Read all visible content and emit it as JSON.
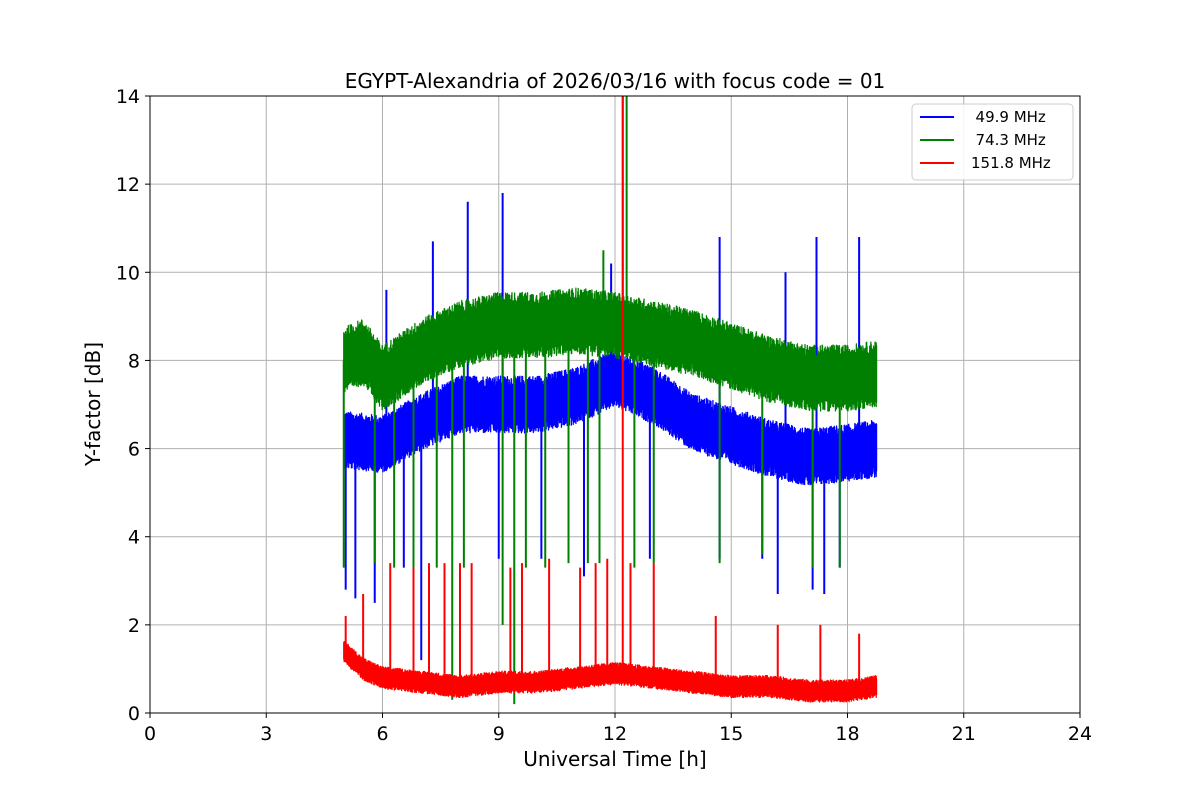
{
  "chart_data": {
    "type": "line",
    "title": "EGYPT-Alexandria of 2026/03/16 with focus code = 01",
    "xlabel": "Universal Time [h]",
    "ylabel": "Y-factor [dB]",
    "xlim": [
      0,
      24
    ],
    "ylim": [
      0,
      14
    ],
    "xticks": [
      0,
      3,
      6,
      9,
      12,
      15,
      18,
      21,
      24
    ],
    "yticks": [
      0,
      2,
      4,
      6,
      8,
      10,
      12,
      14
    ],
    "grid": true,
    "legend_position": "top-right",
    "time_range": [
      5.0,
      18.75
    ],
    "series": [
      {
        "name": "49.9 MHz",
        "label": "  49.9 MHz",
        "color": "#0000ff",
        "baseline": [
          [
            5.0,
            6.2
          ],
          [
            6.0,
            6.1
          ],
          [
            7.0,
            6.6
          ],
          [
            8.0,
            7.0
          ],
          [
            9.0,
            7.0
          ],
          [
            10.0,
            7.0
          ],
          [
            11.0,
            7.2
          ],
          [
            12.0,
            7.6
          ],
          [
            13.0,
            7.2
          ],
          [
            14.0,
            6.6
          ],
          [
            15.0,
            6.3
          ],
          [
            16.0,
            6.0
          ],
          [
            17.0,
            5.8
          ],
          [
            18.0,
            5.9
          ],
          [
            18.75,
            6.0
          ]
        ],
        "noise_span": 1.3,
        "spikes": [
          [
            7.3,
            10.7
          ],
          [
            8.2,
            11.6
          ],
          [
            9.1,
            11.8
          ],
          [
            14.7,
            10.8
          ],
          [
            16.4,
            10.0
          ],
          [
            17.2,
            10.8
          ],
          [
            18.3,
            10.8
          ],
          [
            6.1,
            9.6
          ],
          [
            11.9,
            10.2
          ]
        ],
        "dips": [
          [
            5.05,
            2.8
          ],
          [
            5.3,
            2.6
          ],
          [
            5.8,
            2.5
          ],
          [
            6.55,
            3.3
          ],
          [
            7.0,
            1.2
          ],
          [
            9.0,
            3.5
          ],
          [
            10.1,
            3.5
          ],
          [
            11.2,
            3.1
          ],
          [
            12.9,
            3.5
          ],
          [
            14.7,
            3.5
          ],
          [
            15.8,
            3.5
          ],
          [
            16.2,
            2.7
          ],
          [
            17.1,
            2.8
          ],
          [
            17.4,
            2.7
          ],
          [
            17.8,
            3.3
          ]
        ]
      },
      {
        "name": "74.3 MHz",
        "label": "  74.3 MHz",
        "color": "#008000",
        "baseline": [
          [
            5.0,
            8.0
          ],
          [
            5.5,
            8.2
          ],
          [
            6.0,
            7.6
          ],
          [
            7.0,
            8.2
          ],
          [
            8.0,
            8.6
          ],
          [
            9.0,
            8.8
          ],
          [
            10.0,
            8.8
          ],
          [
            11.0,
            8.9
          ],
          [
            12.0,
            8.8
          ],
          [
            13.0,
            8.6
          ],
          [
            14.0,
            8.4
          ],
          [
            15.0,
            8.1
          ],
          [
            16.0,
            7.8
          ],
          [
            17.0,
            7.6
          ],
          [
            18.0,
            7.6
          ],
          [
            18.75,
            7.7
          ]
        ],
        "noise_span": 1.5,
        "spikes": [
          [
            12.2,
            14.0
          ],
          [
            12.3,
            14.0
          ],
          [
            11.7,
            10.5
          ]
        ],
        "dips": [
          [
            5.0,
            3.3
          ],
          [
            5.8,
            3.4
          ],
          [
            6.3,
            3.3
          ],
          [
            6.8,
            3.3
          ],
          [
            7.4,
            3.3
          ],
          [
            7.8,
            0.3
          ],
          [
            8.1,
            3.3
          ],
          [
            9.1,
            2.0
          ],
          [
            9.4,
            0.2
          ],
          [
            9.7,
            3.3
          ],
          [
            10.2,
            3.3
          ],
          [
            10.8,
            3.4
          ],
          [
            11.3,
            3.4
          ],
          [
            11.6,
            3.4
          ],
          [
            12.5,
            3.3
          ],
          [
            13.0,
            3.4
          ],
          [
            14.7,
            3.4
          ],
          [
            15.8,
            3.6
          ],
          [
            17.1,
            3.3
          ],
          [
            17.8,
            3.3
          ]
        ]
      },
      {
        "name": "151.8 MHz",
        "label": "151.8 MHz",
        "color": "#ff0000",
        "baseline": [
          [
            5.0,
            1.4
          ],
          [
            5.5,
            1.0
          ],
          [
            6.0,
            0.8
          ],
          [
            7.0,
            0.7
          ],
          [
            8.0,
            0.6
          ],
          [
            9.0,
            0.7
          ],
          [
            10.0,
            0.7
          ],
          [
            11.0,
            0.8
          ],
          [
            12.0,
            0.9
          ],
          [
            13.0,
            0.8
          ],
          [
            14.0,
            0.7
          ],
          [
            15.0,
            0.6
          ],
          [
            16.0,
            0.6
          ],
          [
            17.0,
            0.5
          ],
          [
            18.0,
            0.5
          ],
          [
            18.75,
            0.6
          ]
        ],
        "noise_span": 0.5,
        "spikes": [
          [
            5.05,
            2.2
          ],
          [
            5.5,
            2.7
          ],
          [
            6.2,
            3.4
          ],
          [
            6.8,
            3.3
          ],
          [
            7.2,
            3.4
          ],
          [
            7.6,
            3.4
          ],
          [
            8.0,
            3.4
          ],
          [
            8.3,
            3.4
          ],
          [
            9.3,
            3.3
          ],
          [
            9.6,
            3.4
          ],
          [
            10.3,
            3.5
          ],
          [
            11.1,
            3.3
          ],
          [
            11.5,
            3.4
          ],
          [
            11.8,
            3.5
          ],
          [
            12.2,
            14.0
          ],
          [
            12.4,
            3.4
          ],
          [
            13.0,
            3.4
          ],
          [
            14.6,
            2.2
          ],
          [
            16.2,
            2.0
          ],
          [
            17.3,
            2.0
          ],
          [
            18.3,
            1.8
          ]
        ],
        "dips": []
      }
    ]
  }
}
